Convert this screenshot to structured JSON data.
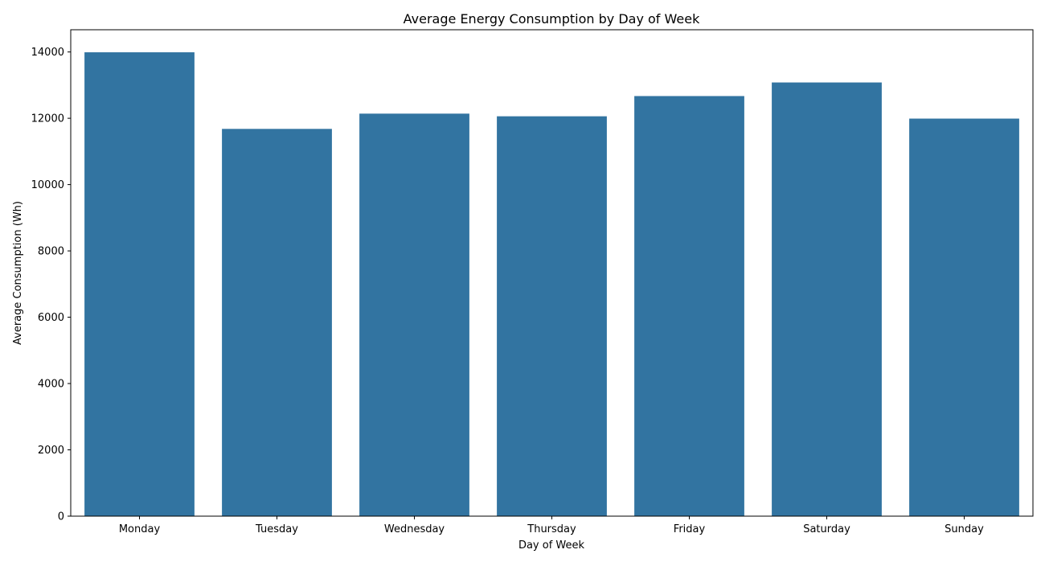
{
  "chart_data": {
    "type": "bar",
    "title": "Average Energy Consumption by Day of Week",
    "xlabel": "Day of Week",
    "ylabel": "Average Consumption (Wh)",
    "categories": [
      "Monday",
      "Tuesday",
      "Wednesday",
      "Thursday",
      "Friday",
      "Saturday",
      "Sunday"
    ],
    "values": [
      13990,
      11680,
      12140,
      12060,
      12670,
      13080,
      11990
    ],
    "ylim": [
      0,
      14670
    ],
    "yticks": [
      0,
      2000,
      4000,
      6000,
      8000,
      10000,
      12000,
      14000
    ],
    "bar_color": "#3274a1",
    "grid": false,
    "legend": "none"
  }
}
